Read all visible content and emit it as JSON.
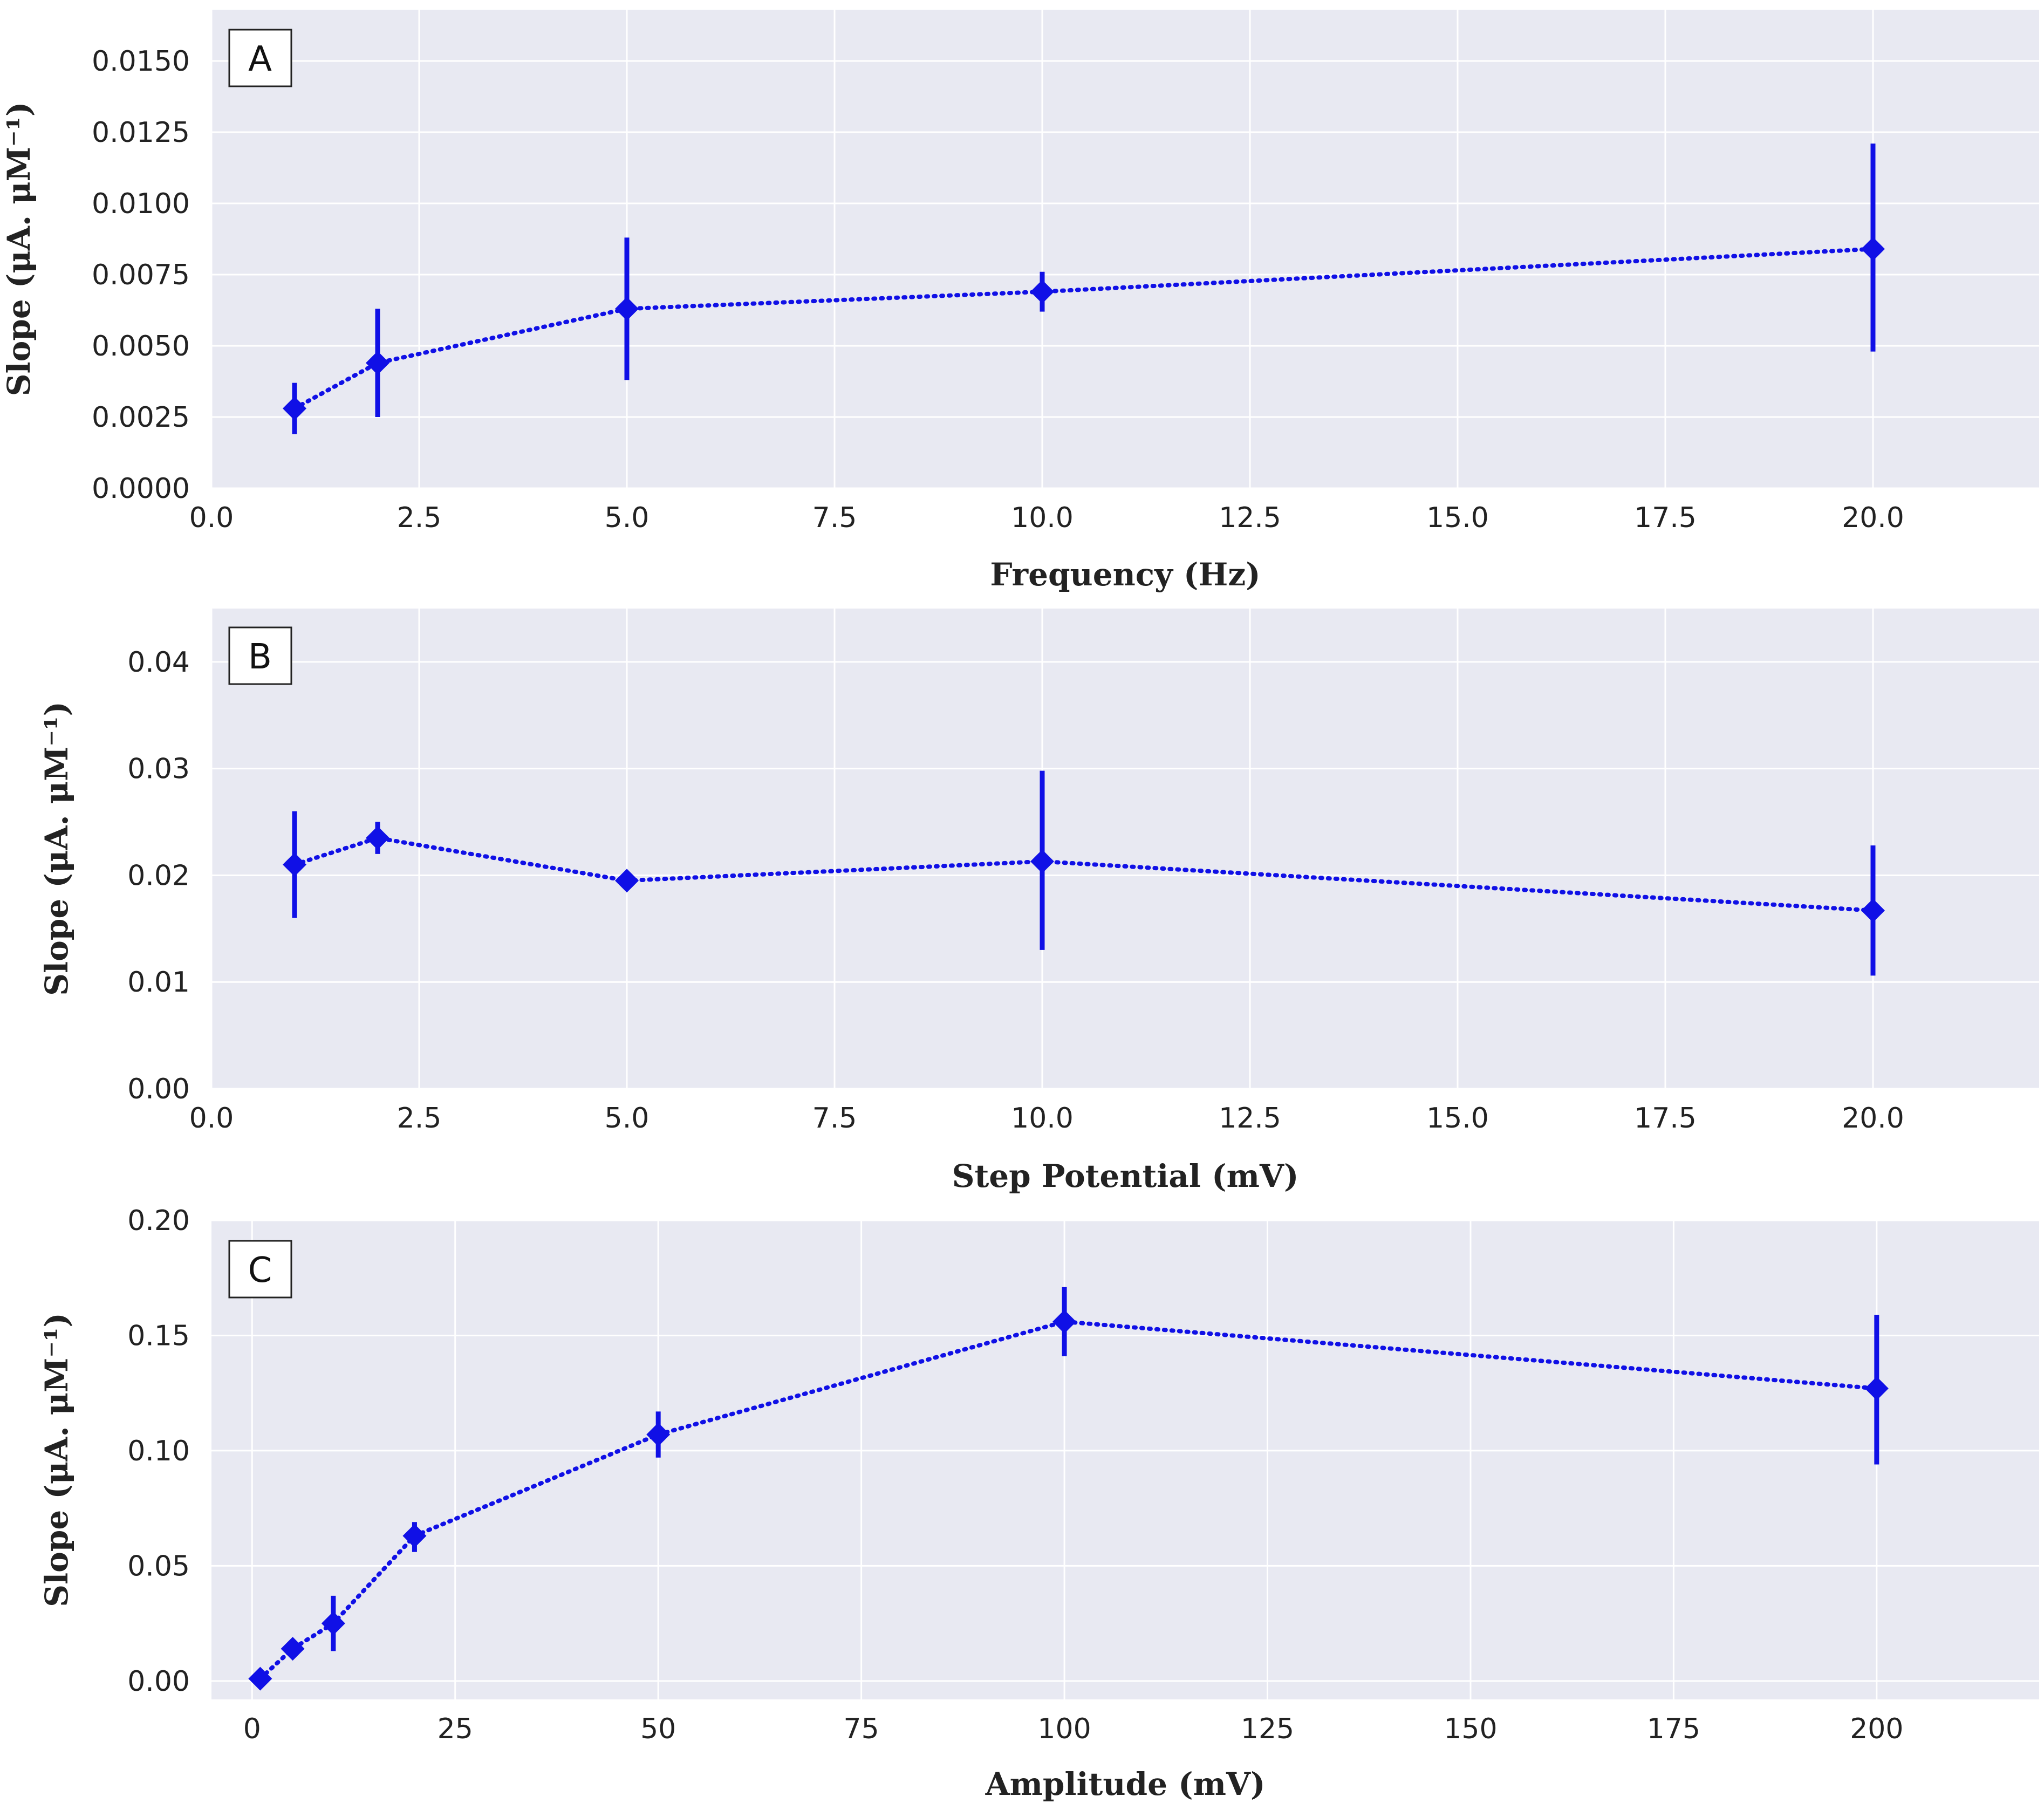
{
  "chart_data": [
    {
      "type": "line",
      "panel_label": "A",
      "xlabel": "Frequency (Hz)",
      "ylabel": "Slope (μA. μM⁻¹)",
      "xlim": [
        0,
        22
      ],
      "ylim": [
        0,
        0.0168
      ],
      "xticks": [
        0,
        2.5,
        5,
        7.5,
        10,
        12.5,
        15,
        17.5,
        20
      ],
      "xtick_labels": [
        "0.0",
        "2.5",
        "5.0",
        "7.5",
        "10.0",
        "12.5",
        "15.0",
        "17.5",
        "20.0"
      ],
      "yticks": [
        0,
        0.0025,
        0.005,
        0.0075,
        0.01,
        0.0125,
        0.015
      ],
      "ytick_labels": [
        "0.0000",
        "0.0025",
        "0.0050",
        "0.0075",
        "0.0100",
        "0.0125",
        "0.0150"
      ],
      "x": [
        1,
        2,
        5,
        10,
        20
      ],
      "y": [
        0.0028,
        0.0044,
        0.0063,
        0.0069,
        0.0084
      ],
      "err_low": [
        0.0019,
        0.0025,
        0.0038,
        0.0062,
        0.0048
      ],
      "err_high": [
        0.0037,
        0.0063,
        0.0088,
        0.0076,
        0.0121
      ],
      "color": "#1010e6",
      "line_style": "dotted",
      "marker": "diamond",
      "grid": true
    },
    {
      "type": "line",
      "panel_label": "B",
      "xlabel": "Step Potential (mV)",
      "ylabel": "Slope (μA. μM⁻¹)",
      "xlim": [
        0,
        22
      ],
      "ylim": [
        0,
        0.045
      ],
      "xticks": [
        0,
        2.5,
        5,
        7.5,
        10,
        12.5,
        15,
        17.5,
        20
      ],
      "xtick_labels": [
        "0.0",
        "2.5",
        "5.0",
        "7.5",
        "10.0",
        "12.5",
        "15.0",
        "17.5",
        "20.0"
      ],
      "yticks": [
        0,
        0.01,
        0.02,
        0.03,
        0.04
      ],
      "ytick_labels": [
        "0.00",
        "0.01",
        "0.02",
        "0.03",
        "0.04"
      ],
      "x": [
        1,
        2,
        5,
        10,
        20
      ],
      "y": [
        0.021,
        0.0235,
        0.0195,
        0.0213,
        0.0167
      ],
      "err_low": [
        0.016,
        0.022,
        0.0195,
        0.013,
        0.0106
      ],
      "err_high": [
        0.026,
        0.025,
        0.0195,
        0.0298,
        0.0228
      ],
      "color": "#1010e6",
      "line_style": "dotted",
      "marker": "diamond",
      "grid": true
    },
    {
      "type": "line",
      "panel_label": "C",
      "xlabel": "Amplitude (mV)",
      "ylabel": "Slope (μA. μM⁻¹)",
      "xlim": [
        -5,
        220
      ],
      "ylim": [
        -0.008,
        0.2
      ],
      "xticks": [
        0,
        25,
        50,
        75,
        100,
        125,
        150,
        175,
        200
      ],
      "xtick_labels": [
        "0",
        "25",
        "50",
        "75",
        "100",
        "125",
        "150",
        "175",
        "200"
      ],
      "yticks": [
        0,
        0.05,
        0.1,
        0.15,
        0.2
      ],
      "ytick_labels": [
        "0.00",
        "0.05",
        "0.10",
        "0.15",
        "0.20"
      ],
      "x": [
        1,
        5,
        10,
        20,
        50,
        100,
        200
      ],
      "y": [
        0.001,
        0.014,
        0.025,
        0.063,
        0.107,
        0.156,
        0.127
      ],
      "err_low": [
        0.0,
        0.011,
        0.013,
        0.056,
        0.097,
        0.141,
        0.094
      ],
      "err_high": [
        0.002,
        0.017,
        0.037,
        0.069,
        0.117,
        0.171,
        0.159
      ],
      "color": "#1010e6",
      "line_style": "dotted",
      "marker": "diamond",
      "grid": true
    }
  ]
}
